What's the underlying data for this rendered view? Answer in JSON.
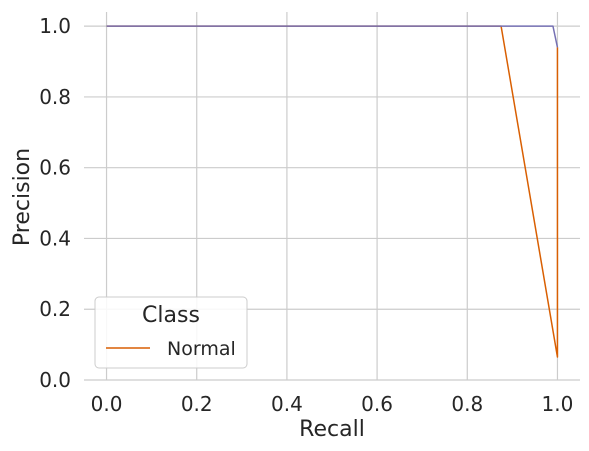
{
  "chart_data": {
    "type": "line",
    "xlabel": "Recall",
    "ylabel": "Precision",
    "xlim": [
      -0.05,
      1.05
    ],
    "ylim": [
      0.0,
      1.04
    ],
    "x_ticks": [
      0.0,
      0.2,
      0.4,
      0.6,
      0.8,
      1.0
    ],
    "x_tick_labels": [
      "0.0",
      "0.2",
      "0.4",
      "0.6",
      "0.8",
      "1.0"
    ],
    "y_ticks": [
      0.0,
      0.2,
      0.4,
      0.6,
      0.8,
      1.0
    ],
    "y_tick_labels": [
      "0.0",
      "0.2",
      "0.4",
      "0.6",
      "0.8",
      "1.0"
    ],
    "grid": true,
    "legend": {
      "title": "Class",
      "position": "lower-left",
      "entries": [
        {
          "label": "Normal",
          "color": "#d95f02"
        }
      ]
    },
    "series": [
      {
        "color": "#d95f02",
        "x": [
          0.0,
          0.875,
          1.0,
          1.0
        ],
        "y": [
          1.0,
          1.0,
          0.065,
          0.94
        ]
      },
      {
        "color": "#7570b3",
        "x": [
          0.0,
          0.99,
          1.0,
          1.0
        ],
        "y": [
          1.0,
          1.0,
          0.94,
          0.94
        ]
      }
    ]
  }
}
